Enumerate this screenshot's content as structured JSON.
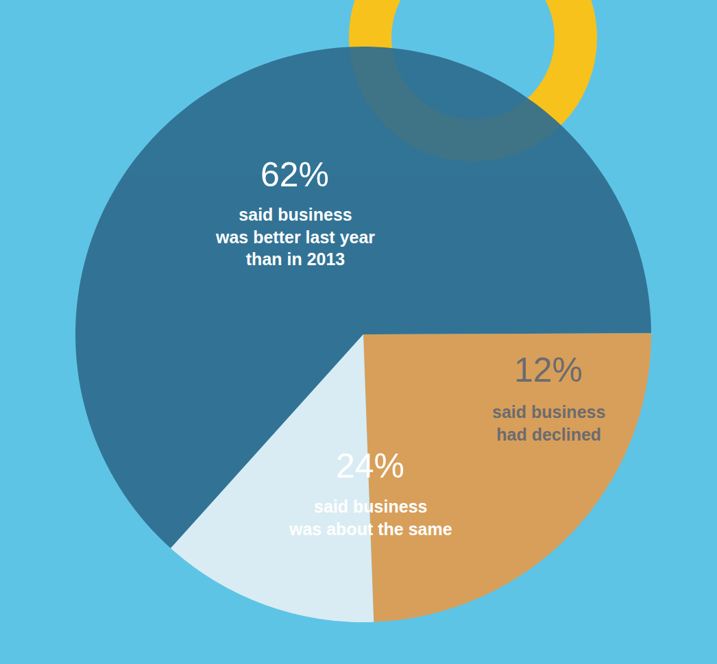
{
  "chart_data": {
    "type": "pie",
    "categories": [
      "said business\nwas better last year\nthan in 2013",
      "said business\nwas about the same",
      "said business\nhad declined"
    ],
    "values": [
      62,
      24,
      12
    ],
    "value_labels": [
      "62%",
      "24%",
      "12%"
    ],
    "colors": [
      "#2f6d8f",
      "#e39c4f",
      "#e4f0f5"
    ],
    "data_labels": true
  }
}
